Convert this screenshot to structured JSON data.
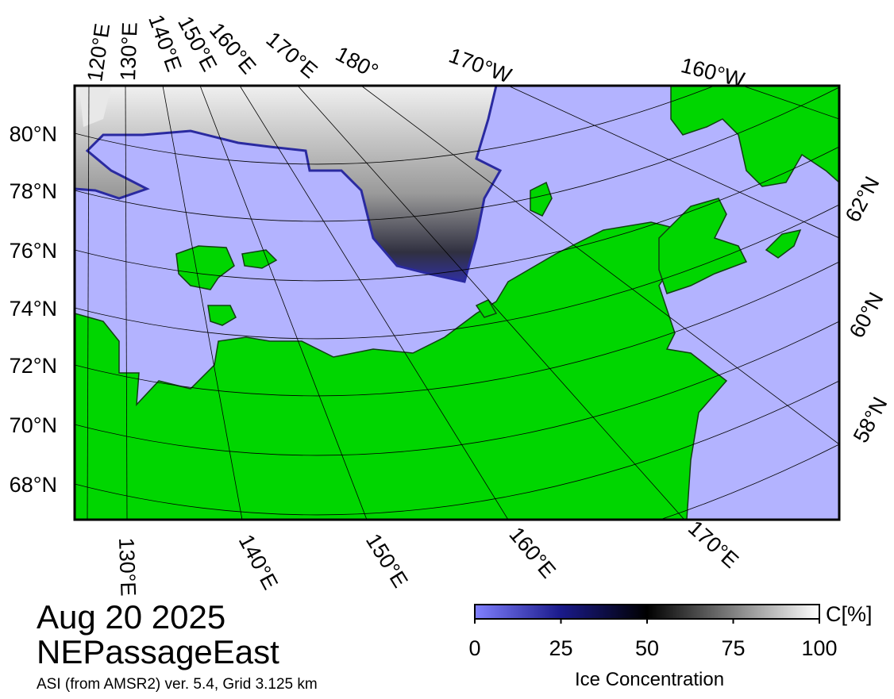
{
  "map": {
    "top_labels": [
      "120°E",
      "130°E",
      "140°E",
      "150°E",
      "160°E",
      "170°E",
      "180°",
      "170°W",
      "160°W"
    ],
    "left_labels": [
      "80°N",
      "78°N",
      "76°N",
      "74°N",
      "72°N",
      "70°N",
      "68°N"
    ],
    "right_labels": [
      "62°N",
      "60°N",
      "58°N"
    ],
    "bottom_labels": [
      "130°E",
      "140°E",
      "150°E",
      "160°E",
      "170°E"
    ]
  },
  "date": "Aug 20 2025",
  "region": "NEPassageEast",
  "source": "ASI (from AMSR2) ver. 5.4,  Grid 3.125 km",
  "colorbar": {
    "range": [
      0,
      100
    ],
    "ticks": [
      0,
      25,
      50,
      75,
      100
    ],
    "unit": "C[%]",
    "label": "Ice Concentration"
  }
}
